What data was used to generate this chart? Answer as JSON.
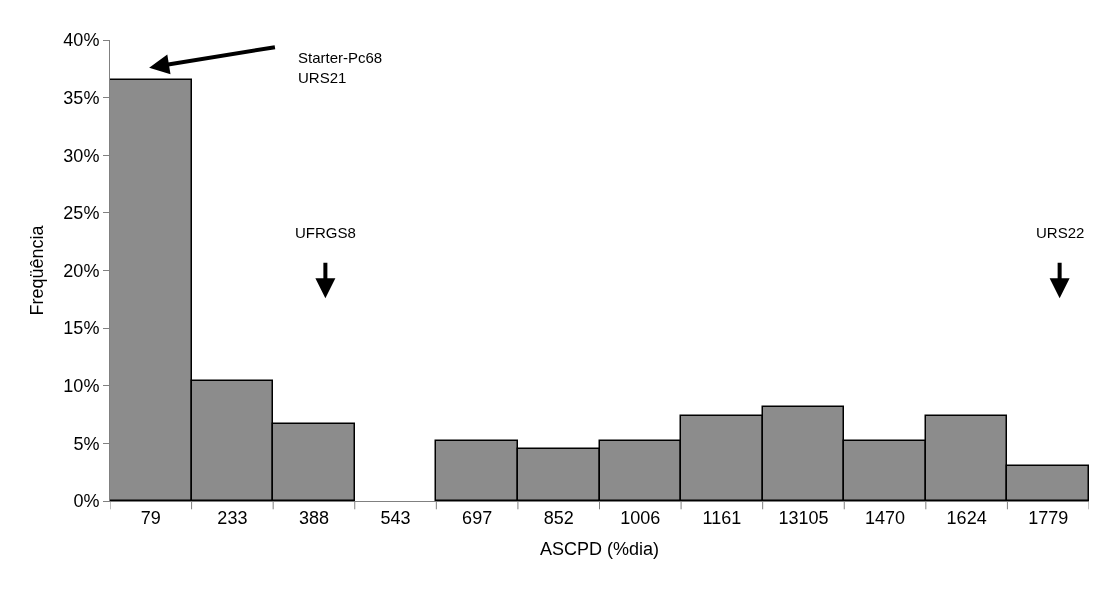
{
  "chart_data": {
    "type": "bar",
    "xlabel": "ASCPD (%dia)",
    "ylabel": "Freqüência",
    "categories": [
      "79",
      "233",
      "388",
      "543",
      "697",
      "852",
      "1006",
      "1161",
      "13105",
      "1470",
      "1624",
      "1779"
    ],
    "values": [
      36.5,
      10.4,
      6.7,
      0,
      5.2,
      4.5,
      5.2,
      7.4,
      8.2,
      5.2,
      7.4,
      3.0
    ],
    "color": "#8c8c8c",
    "ylim": [
      0,
      40
    ],
    "yticks": [
      {
        "value": 0,
        "label": "0%"
      },
      {
        "value": 5,
        "label": "5%"
      },
      {
        "value": 10,
        "label": "10%"
      },
      {
        "value": 15,
        "label": "15%"
      },
      {
        "value": 20,
        "label": "20%"
      },
      {
        "value": 25,
        "label": "25%"
      },
      {
        "value": 30,
        "label": "30%"
      },
      {
        "value": 35,
        "label": "35%"
      },
      {
        "value": 40,
        "label": "40%"
      }
    ],
    "annotations": [
      "Starter-Pc68\nURS21",
      "UFRGS8",
      "URS22"
    ]
  }
}
